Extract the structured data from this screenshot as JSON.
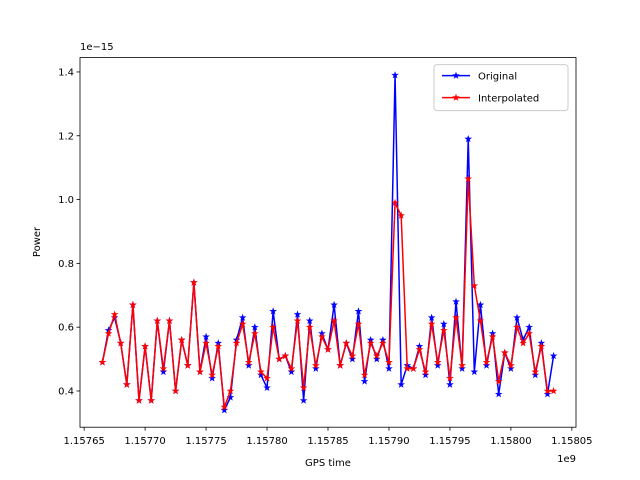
{
  "chart_data": {
    "type": "line",
    "xlabel": "GPS time",
    "ylabel": "Power",
    "x_offset_label": "1e9",
    "y_offset_label": "1e−15",
    "x": [
      1.157665,
      1.15767,
      1.157675,
      1.15768,
      1.157685,
      1.15769,
      1.157695,
      1.1577,
      1.157705,
      1.15771,
      1.157715,
      1.15772,
      1.157725,
      1.15773,
      1.157735,
      1.15774,
      1.157745,
      1.15775,
      1.157755,
      1.15776,
      1.157765,
      1.15777,
      1.157775,
      1.15778,
      1.157785,
      1.15779,
      1.157795,
      1.1578,
      1.157805,
      1.15781,
      1.157815,
      1.15782,
      1.157825,
      1.15783,
      1.157835,
      1.15784,
      1.157845,
      1.15785,
      1.157855,
      1.15786,
      1.157865,
      1.15787,
      1.157875,
      1.15788,
      1.157885,
      1.15789,
      1.157895,
      1.1579,
      1.157905,
      1.15791,
      1.157915,
      1.15792,
      1.157925,
      1.15793,
      1.157935,
      1.15794,
      1.157945,
      1.15795,
      1.157955,
      1.15796,
      1.157965,
      1.15797,
      1.157975,
      1.15798,
      1.157985,
      1.15799,
      1.157995,
      1.158,
      1.158005,
      1.15801,
      1.158015,
      1.15802,
      1.158025,
      1.15803,
      1.158035
    ],
    "series": [
      {
        "name": "Original",
        "color": "#0000ff",
        "values": [
          0.49,
          0.59,
          0.63,
          0.55,
          0.42,
          0.67,
          0.37,
          0.54,
          0.37,
          0.62,
          0.46,
          0.62,
          0.4,
          0.56,
          0.48,
          0.74,
          0.46,
          0.57,
          0.44,
          0.55,
          0.34,
          0.38,
          0.56,
          0.63,
          0.48,
          0.6,
          0.45,
          0.41,
          0.65,
          0.5,
          0.51,
          0.46,
          0.64,
          0.37,
          0.62,
          0.47,
          0.58,
          0.53,
          0.67,
          0.48,
          0.55,
          0.5,
          0.65,
          0.43,
          0.56,
          0.5,
          0.56,
          0.47,
          1.39,
          0.42,
          0.48,
          0.47,
          0.54,
          0.45,
          0.63,
          0.48,
          0.61,
          0.42,
          0.68,
          0.47,
          1.19,
          0.46,
          0.67,
          0.48,
          0.58,
          0.39,
          0.52,
          0.47,
          0.63,
          0.56,
          0.6,
          0.45,
          0.55,
          0.39,
          0.51
        ]
      },
      {
        "name": "Interpolated",
        "color": "#ff0000",
        "values": [
          0.49,
          0.58,
          0.64,
          0.55,
          0.42,
          0.67,
          0.37,
          0.54,
          0.37,
          0.62,
          0.47,
          0.62,
          0.4,
          0.56,
          0.48,
          0.74,
          0.46,
          0.55,
          0.45,
          0.54,
          0.35,
          0.4,
          0.55,
          0.61,
          0.49,
          0.58,
          0.46,
          0.44,
          0.6,
          0.5,
          0.51,
          0.47,
          0.62,
          0.41,
          0.6,
          0.48,
          0.57,
          0.53,
          0.62,
          0.48,
          0.55,
          0.51,
          0.61,
          0.45,
          0.55,
          0.51,
          0.55,
          0.49,
          0.99,
          0.95,
          0.47,
          0.47,
          0.53,
          0.46,
          0.61,
          0.49,
          0.59,
          0.44,
          0.63,
          0.48,
          1.065,
          0.73,
          0.62,
          0.49,
          0.57,
          0.43,
          0.52,
          0.48,
          0.6,
          0.55,
          0.58,
          0.46,
          0.54,
          0.4,
          0.4
        ]
      }
    ],
    "xlim": [
      1.1576466,
      1.1580534
    ],
    "xticks": [
      1.15765,
      {
        "value": 1.1577,
        "label": "1.15770"
      },
      1.15775,
      {
        "value": 1.1578,
        "label": "1.15780"
      },
      1.15785,
      {
        "value": 1.1579,
        "label": "1.15790"
      },
      1.15795,
      {
        "value": 1.158,
        "label": "1.15800"
      },
      1.15805
    ],
    "ylim": [
      0.2865,
      1.445
    ],
    "yticks": [
      0.4,
      0.6,
      0.8,
      {
        "value": 1.0,
        "label": "1.0"
      },
      1.2,
      1.4
    ],
    "grid": false,
    "legend": "upper right"
  }
}
